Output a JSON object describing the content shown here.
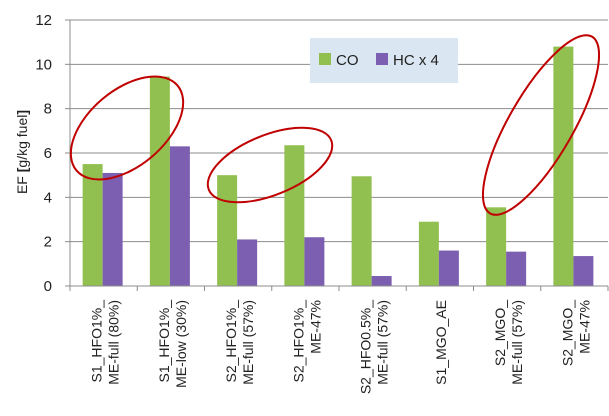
{
  "chart_data": {
    "type": "bar",
    "ylabel_parts": [
      "EF ",
      "[",
      "g/kg fuel",
      "]"
    ],
    "ylim": [
      0,
      12
    ],
    "yticks": [
      "0",
      "2",
      "4",
      "6",
      "8",
      "10",
      "12"
    ],
    "grid": true,
    "legend_position": "top-center",
    "categories": [
      [
        "S1_HFO1%_",
        "ME-full (80%)"
      ],
      [
        "S1_HFO1%_",
        "ME-low (30%)"
      ],
      [
        "S2_HFO1%_",
        "ME-full (57%)"
      ],
      [
        "S2_HFO1%_",
        "ME-47%"
      ],
      [
        "S2_HFO0.5%_",
        "ME-full (57%)"
      ],
      [
        "S1_MGO_AE"
      ],
      [
        "S2_MGO_",
        "ME-full (57%)"
      ],
      [
        "S2_MGO_",
        "ME-47%"
      ]
    ],
    "series": [
      {
        "name": "CO",
        "color": "#92c050",
        "values": [
          5.5,
          9.45,
          5.0,
          6.35,
          4.95,
          2.9,
          3.55,
          10.8
        ]
      },
      {
        "name": "HC x 4",
        "color": "#7c5fb0",
        "values": [
          5.1,
          6.3,
          2.1,
          2.2,
          0.45,
          1.6,
          1.55,
          1.35
        ]
      }
    ],
    "annotation_color": "#c00000"
  }
}
